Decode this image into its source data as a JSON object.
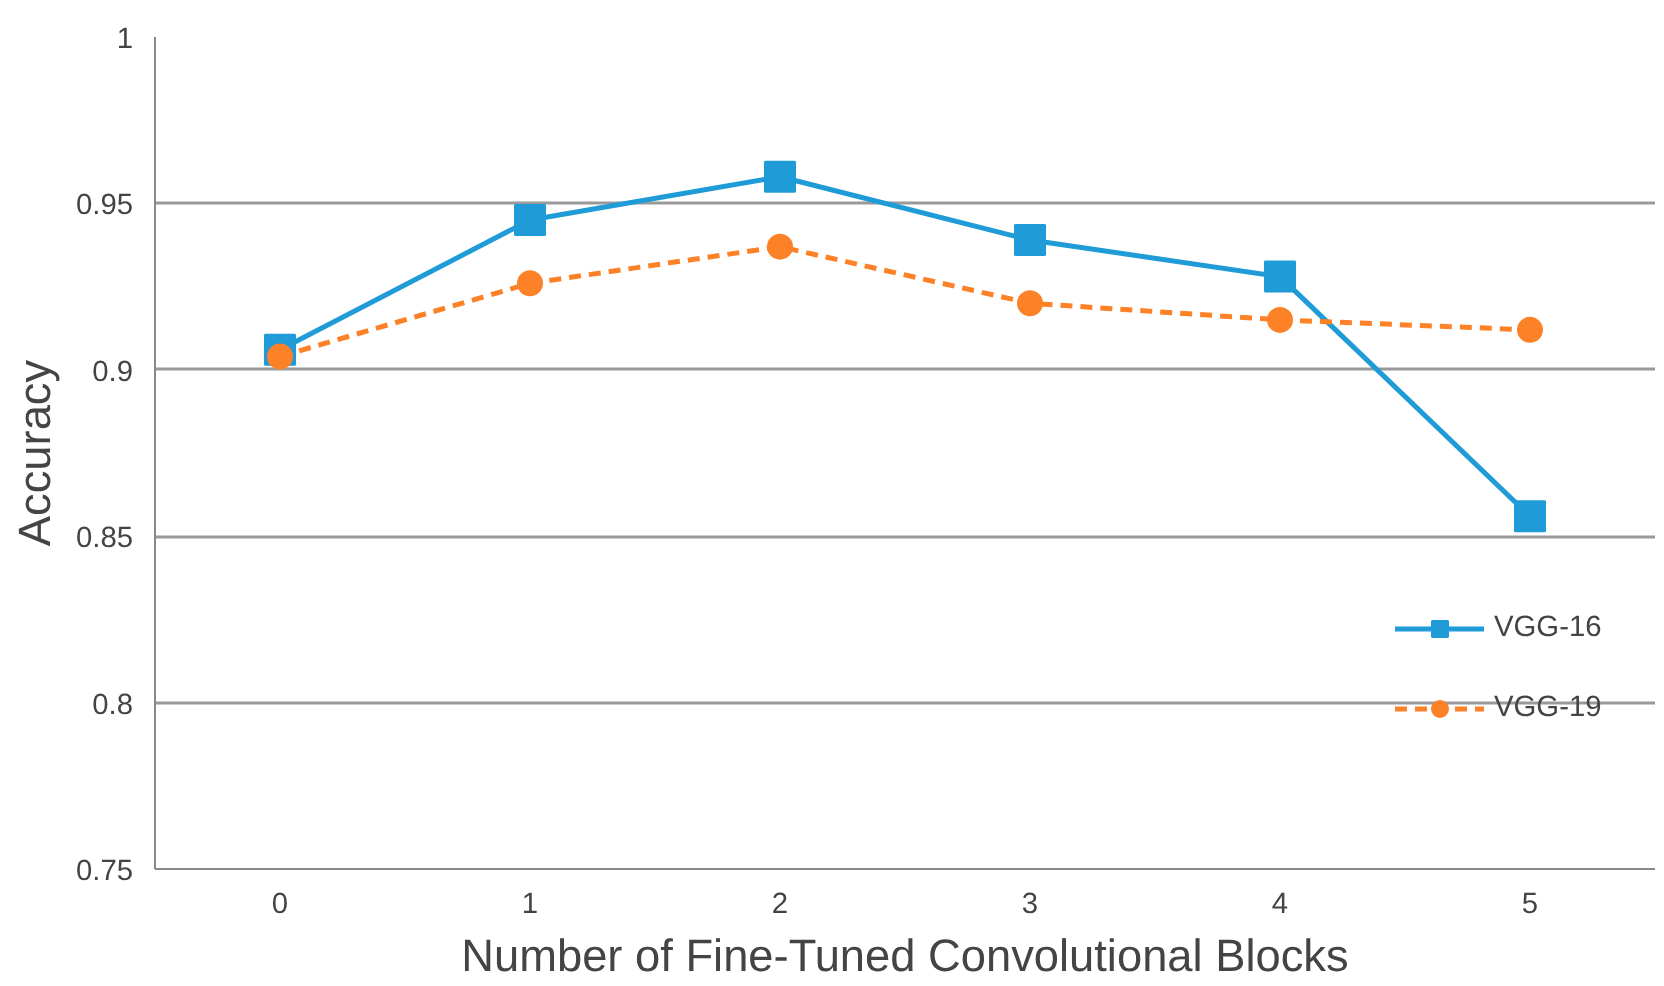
{
  "chart_data": {
    "type": "line",
    "xlabel": "Number of Fine-Tuned Convolutional Blocks",
    "ylabel": "Accuracy",
    "x": [
      0,
      1,
      2,
      3,
      4,
      5
    ],
    "xlim": [
      -0.5,
      5.5
    ],
    "xticks": [
      0,
      1,
      2,
      3,
      4,
      5
    ],
    "ylim": [
      0.75,
      1
    ],
    "yticks": [
      {
        "value": 0.75,
        "label": "0.75"
      },
      {
        "value": 0.8,
        "label": "0.8"
      },
      {
        "value": 0.85,
        "label": "0.85"
      },
      {
        "value": 0.9,
        "label": "0.9"
      },
      {
        "value": 0.95,
        "label": "0.95"
      },
      {
        "value": 1,
        "label": "1"
      }
    ],
    "grid": "y",
    "legend": "right",
    "series": [
      {
        "name": "VGG-16",
        "color": "#1f9bd7",
        "marker": "square",
        "line_style": "solid",
        "values": [
          0.906,
          0.945,
          0.958,
          0.939,
          0.928,
          0.856
        ]
      },
      {
        "name": "VGG-19",
        "color": "#fd8127",
        "marker": "circle",
        "line_style": "dashed",
        "values": [
          0.904,
          0.926,
          0.937,
          0.92,
          0.915,
          0.912
        ]
      }
    ]
  }
}
